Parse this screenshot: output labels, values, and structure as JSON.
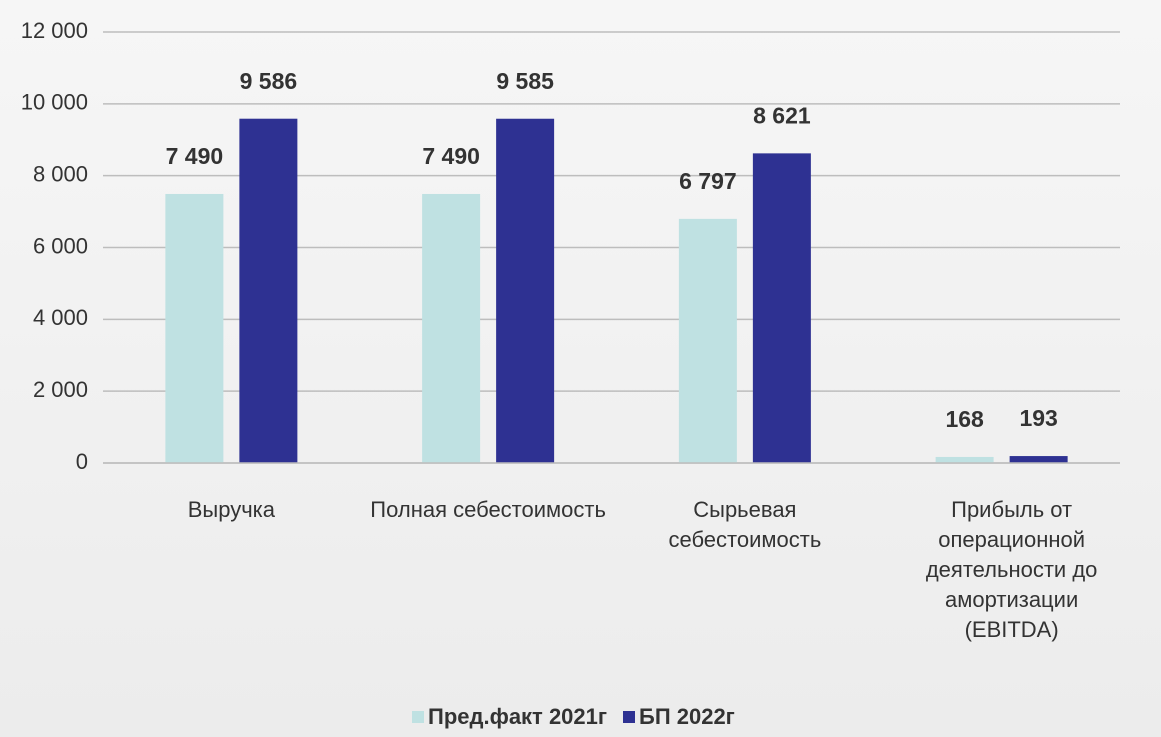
{
  "chart_data": {
    "type": "bar",
    "categories": [
      "Выручка",
      "Полная себестоимость",
      "Сырьевая себестоимость",
      "Прибыль от операционной деятельности до амортизации  (EBITDA)"
    ],
    "series": [
      {
        "name": "Пред.факт 2021г",
        "color": "#bfe1e2",
        "values": [
          7490,
          7490,
          6797,
          168
        ],
        "value_labels": [
          "7 490",
          "7 490",
          "6 797",
          "168"
        ]
      },
      {
        "name": "БП 2022г",
        "color": "#2e3192",
        "values": [
          9586,
          9585,
          8621,
          193
        ],
        "value_labels": [
          "9 586",
          "9 585",
          "8 621",
          "193"
        ]
      }
    ],
    "ylim": [
      0,
      12000
    ],
    "yticks": [
      0,
      {
        "value": 2000,
        "label": "2 000"
      },
      {
        "value": 4000,
        "label": "4 000"
      },
      {
        "value": 6000,
        "label": "6 000"
      },
      {
        "value": 8000,
        "label": "8 000"
      },
      {
        "value": 10000,
        "label": "10 000"
      },
      {
        "value": 12000,
        "label": "12 000"
      }
    ],
    "grid": true,
    "legend": "bottom"
  }
}
